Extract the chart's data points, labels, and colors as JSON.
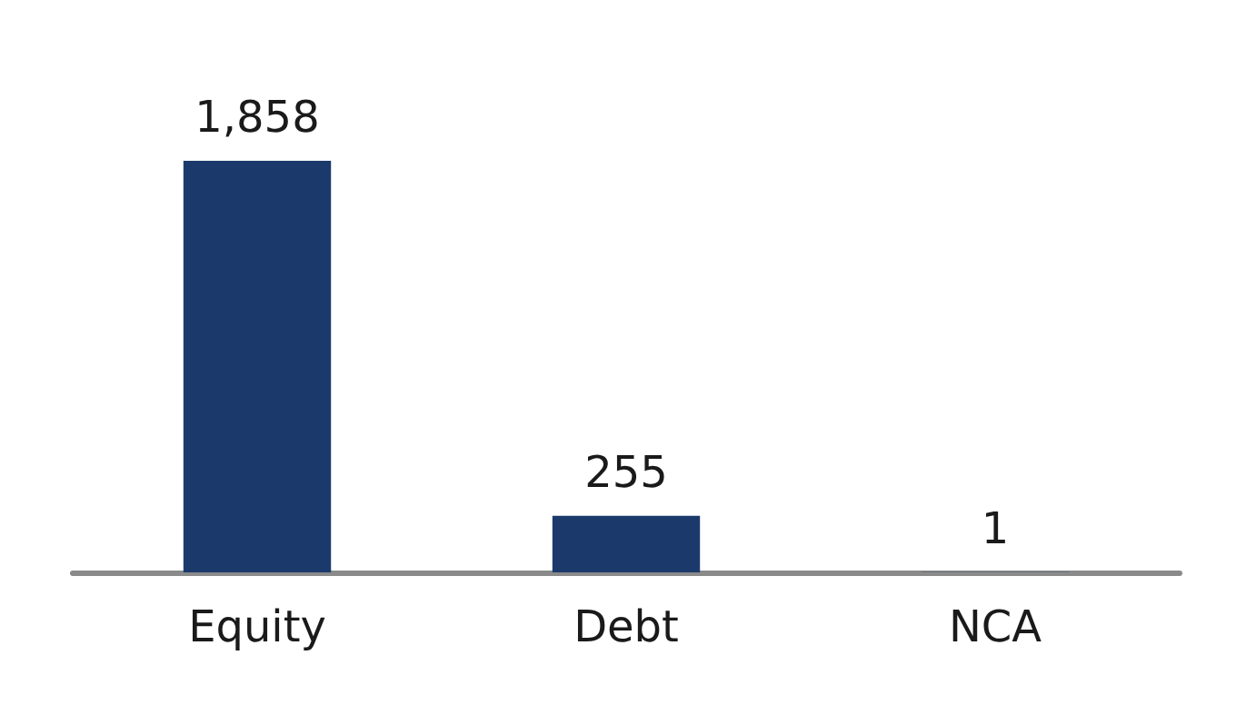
{
  "chart_data": {
    "type": "bar",
    "categories": [
      "Equity",
      "Debt",
      "NCA"
    ],
    "values": [
      1858,
      255,
      1
    ],
    "color": "#1b3a6b",
    "data_labels": true,
    "value_labels": [
      "1,858",
      "255",
      "1"
    ]
  }
}
